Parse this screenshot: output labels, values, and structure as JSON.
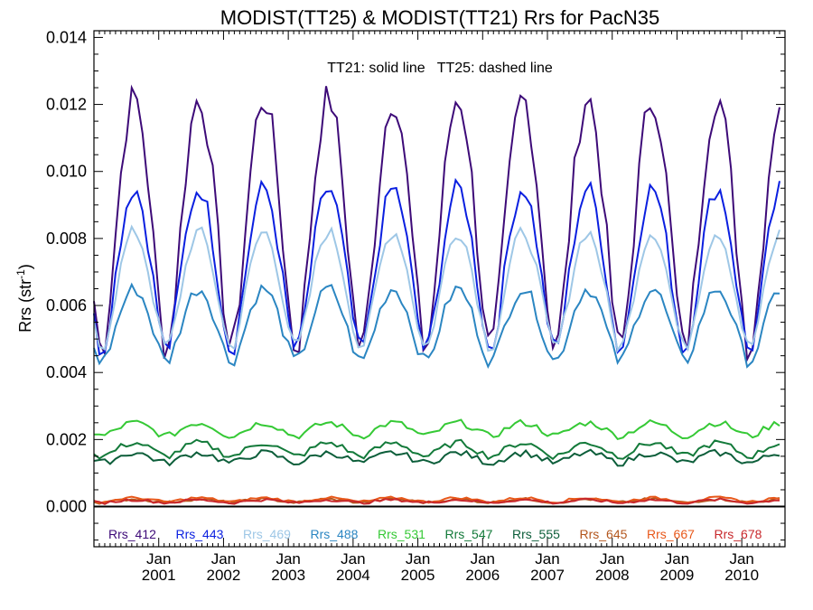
{
  "chart_data": {
    "type": "line",
    "title": "MODIST(TT25) & MODIST(TT21)  Rrs for PacN35",
    "annotation": "TT21: solid line   TT25: dashed line",
    "ylabel_main": "Rrs (str",
    "ylabel_sup": "-1",
    "ylabel_end": ")",
    "ylim": [
      -0.0012,
      0.0142
    ],
    "xlim": [
      2000.0,
      2010.667
    ],
    "y_ticks": [
      {
        "value": 0.0,
        "label": "0.000"
      },
      {
        "value": 0.002,
        "label": "0.002"
      },
      {
        "value": 0.004,
        "label": "0.004"
      },
      {
        "value": 0.006,
        "label": "0.006"
      },
      {
        "value": 0.008,
        "label": "0.008"
      },
      {
        "value": 0.01,
        "label": "0.010"
      },
      {
        "value": 0.012,
        "label": "0.012"
      },
      {
        "value": 0.014,
        "label": "0.014"
      }
    ],
    "x_ticks": [
      {
        "value": 2001.0,
        "month": "Jan",
        "year": "2001"
      },
      {
        "value": 2002.0,
        "month": "Jan",
        "year": "2002"
      },
      {
        "value": 2003.0,
        "month": "Jan",
        "year": "2003"
      },
      {
        "value": 2004.0,
        "month": "Jan",
        "year": "2004"
      },
      {
        "value": 2005.0,
        "month": "Jan",
        "year": "2005"
      },
      {
        "value": 2006.0,
        "month": "Jan",
        "year": "2006"
      },
      {
        "value": 2007.0,
        "month": "Jan",
        "year": "2007"
      },
      {
        "value": 2008.0,
        "month": "Jan",
        "year": "2008"
      },
      {
        "value": 2009.0,
        "month": "Jan",
        "year": "2009"
      },
      {
        "value": 2010.0,
        "month": "Jan",
        "year": "2010"
      }
    ],
    "zero_line": 0.0,
    "series": [
      {
        "name": "Rrs_412",
        "color": "#3d0a78",
        "winter": 0.0046,
        "summer": 0.0122,
        "noise": 0.0005
      },
      {
        "name": "Rrs_443",
        "color": "#0a1fe0",
        "winter": 0.0046,
        "summer": 0.0095,
        "noise": 0.0003
      },
      {
        "name": "Rrs_469",
        "color": "#9ec7e6",
        "winter": 0.0047,
        "summer": 0.0082,
        "noise": 0.0002
      },
      {
        "name": "Rrs_488",
        "color": "#2b86c2",
        "winter": 0.0043,
        "summer": 0.0065,
        "noise": 0.0002
      },
      {
        "name": "Rrs_531",
        "color": "#35c935",
        "winter": 0.0021,
        "summer": 0.0025,
        "noise": 0.0001
      },
      {
        "name": "Rrs_547",
        "color": "#137a3a",
        "winter": 0.0015,
        "summer": 0.0019,
        "noise": 0.0001
      },
      {
        "name": "Rrs_555",
        "color": "#0c5e3a",
        "winter": 0.0013,
        "summer": 0.0016,
        "noise": 0.0001
      },
      {
        "name": "Rrs_645",
        "color": "#b3561d",
        "winter": 0.00012,
        "summer": 0.00022,
        "noise": 4e-05
      },
      {
        "name": "Rrs_667",
        "color": "#e8581a",
        "winter": 0.00014,
        "summer": 0.00026,
        "noise": 4e-05
      },
      {
        "name": "Rrs_678",
        "color": "#c8282c",
        "winter": 0.00011,
        "summer": 0.0002,
        "noise": 4e-05
      }
    ],
    "grid": false
  }
}
